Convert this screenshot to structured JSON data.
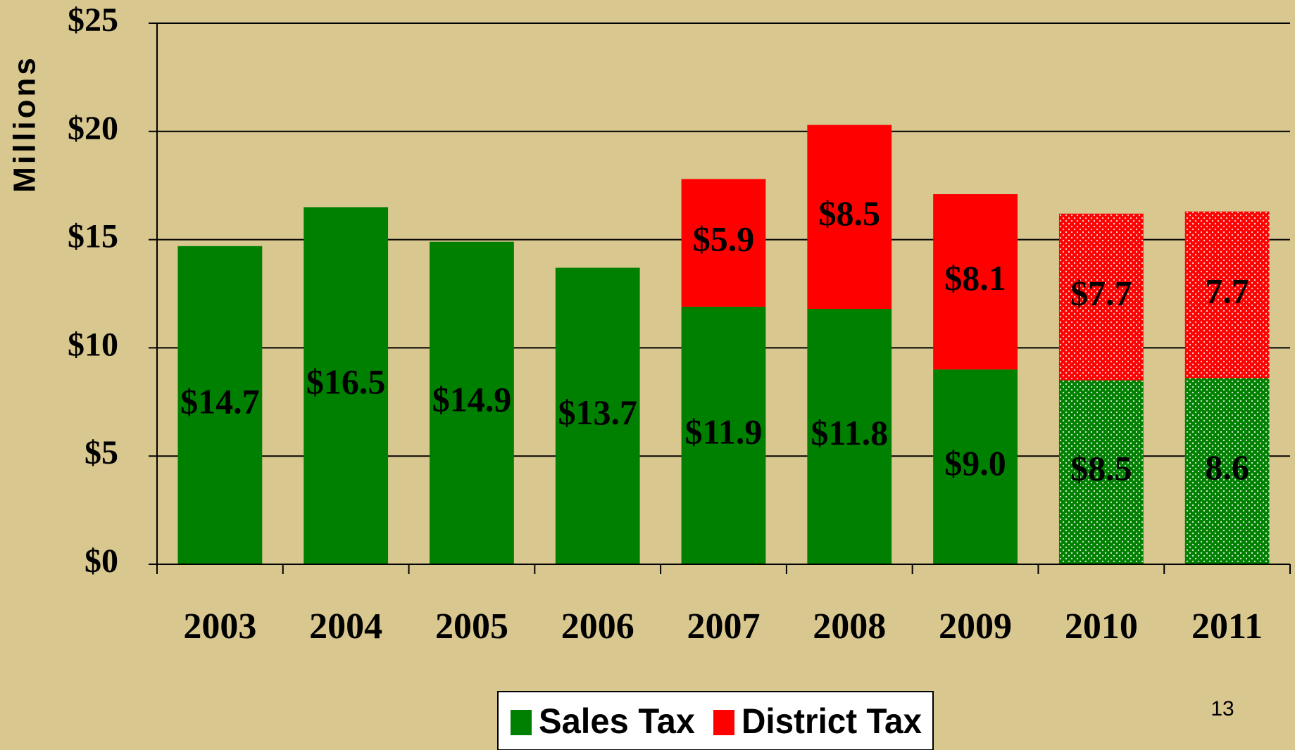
{
  "chart_data": {
    "type": "stacked_bar",
    "y_label": "Millions",
    "categories": [
      "2003",
      "2004",
      "2005",
      "2006",
      "2007",
      "2008",
      "2009",
      "2010",
      "2011"
    ],
    "series": [
      {
        "name": "Sales Tax",
        "color": "#008000",
        "values": [
          14.7,
          16.5,
          14.9,
          13.7,
          11.9,
          11.8,
          9.0,
          8.5,
          8.6
        ],
        "value_labels": [
          "$14.7",
          "$16.5",
          "$14.9",
          "$13.7",
          "$11.9",
          "$11.8",
          "$9.0",
          "$8.5",
          "8.6"
        ]
      },
      {
        "name": "District Tax",
        "color": "#ff0000",
        "values": [
          null,
          null,
          null,
          null,
          5.9,
          8.5,
          8.1,
          7.7,
          7.7
        ],
        "value_labels": [
          null,
          null,
          null,
          null,
          "$5.9",
          "$8.5",
          "$8.1",
          "$7.7",
          "7.7"
        ]
      }
    ],
    "dotted_categories": [
      "2010",
      "2011"
    ],
    "ylim": [
      0,
      25
    ],
    "yticks": [
      {
        "value": 0,
        "label": "$0"
      },
      {
        "value": 5,
        "label": "$5"
      },
      {
        "value": 10,
        "label": "$10"
      },
      {
        "value": 15,
        "label": "$15"
      },
      {
        "value": 20,
        "label": "$20"
      },
      {
        "value": 25,
        "label": "$25"
      }
    ],
    "grid": true,
    "legend": "bottom",
    "page_number": "13"
  }
}
